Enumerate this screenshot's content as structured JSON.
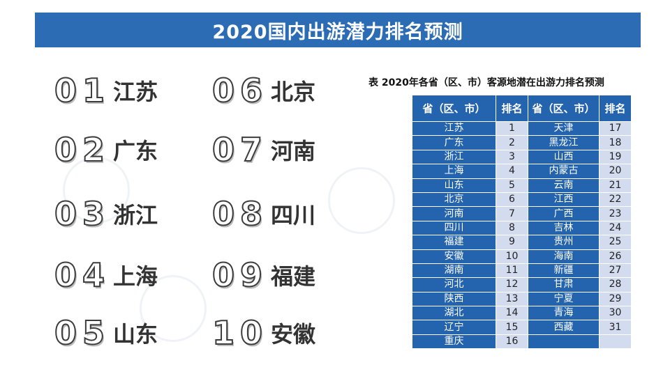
{
  "title": "2020国内出游潜力排名预测",
  "top10": [
    {
      "num": "01",
      "name": "江苏"
    },
    {
      "num": "02",
      "name": "广东"
    },
    {
      "num": "03",
      "name": "浙江"
    },
    {
      "num": "04",
      "name": "上海"
    },
    {
      "num": "05",
      "name": "山东"
    },
    {
      "num": "06",
      "name": "北京"
    },
    {
      "num": "07",
      "name": "河南"
    },
    {
      "num": "08",
      "name": "四川"
    },
    {
      "num": "09",
      "name": "福建"
    },
    {
      "num": "10",
      "name": "安徽"
    }
  ],
  "table": {
    "caption": "表  2020年各省（区、市）客源地潜在出游力排名预测",
    "headers": [
      "省（区、市）",
      "排名",
      "省（区、市）",
      "排名"
    ],
    "rows": [
      [
        "江苏",
        "1",
        "天津",
        "17"
      ],
      [
        "广东",
        "2",
        "黑龙江",
        "18"
      ],
      [
        "浙江",
        "3",
        "山西",
        "19"
      ],
      [
        "上海",
        "4",
        "内蒙古",
        "20"
      ],
      [
        "山东",
        "5",
        "云南",
        "21"
      ],
      [
        "北京",
        "6",
        "江西",
        "22"
      ],
      [
        "河南",
        "7",
        "广西",
        "23"
      ],
      [
        "四川",
        "8",
        "吉林",
        "24"
      ],
      [
        "福建",
        "9",
        "贵州",
        "25"
      ],
      [
        "安徽",
        "10",
        "海南",
        "26"
      ],
      [
        "湖南",
        "11",
        "新疆",
        "27"
      ],
      [
        "河北",
        "12",
        "甘肃",
        "28"
      ],
      [
        "陕西",
        "13",
        "宁夏",
        "29"
      ],
      [
        "湖北",
        "14",
        "青海",
        "30"
      ],
      [
        "辽宁",
        "15",
        "西藏",
        "31"
      ],
      [
        "重庆",
        "16",
        "",
        ""
      ]
    ]
  },
  "colors": {
    "title_bg": "#2b6cb4",
    "table_name_bg": "#2463ae",
    "table_rank_bg": "#d3dcef"
  }
}
